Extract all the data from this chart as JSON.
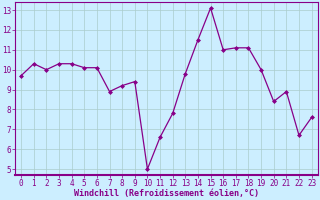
{
  "x": [
    0,
    1,
    2,
    3,
    4,
    5,
    6,
    7,
    8,
    9,
    10,
    11,
    12,
    13,
    14,
    15,
    16,
    17,
    18,
    19,
    20,
    21,
    22,
    23
  ],
  "y": [
    9.7,
    10.3,
    10.0,
    10.3,
    10.3,
    10.1,
    10.1,
    8.9,
    9.2,
    9.4,
    5.0,
    6.6,
    7.8,
    9.8,
    11.5,
    13.1,
    11.0,
    11.1,
    11.1,
    10.0,
    8.4,
    8.9,
    6.7,
    7.6
  ],
  "line_color": "#880088",
  "marker": "D",
  "marker_size": 2.0,
  "bg_color": "#cceeff",
  "grid_color": "#aacccc",
  "xlabel": "Windchill (Refroidissement éolien,°C)",
  "xlabel_color": "#880088",
  "tick_color": "#880088",
  "spine_color": "#880088",
  "ylim": [
    4.7,
    13.4
  ],
  "xlim": [
    -0.5,
    23.5
  ],
  "yticks": [
    5,
    6,
    7,
    8,
    9,
    10,
    11,
    12,
    13
  ],
  "xticks": [
    0,
    1,
    2,
    3,
    4,
    5,
    6,
    7,
    8,
    9,
    10,
    11,
    12,
    13,
    14,
    15,
    16,
    17,
    18,
    19,
    20,
    21,
    22,
    23
  ],
  "tick_fontsize": 5.5,
  "xlabel_fontsize": 6.0
}
